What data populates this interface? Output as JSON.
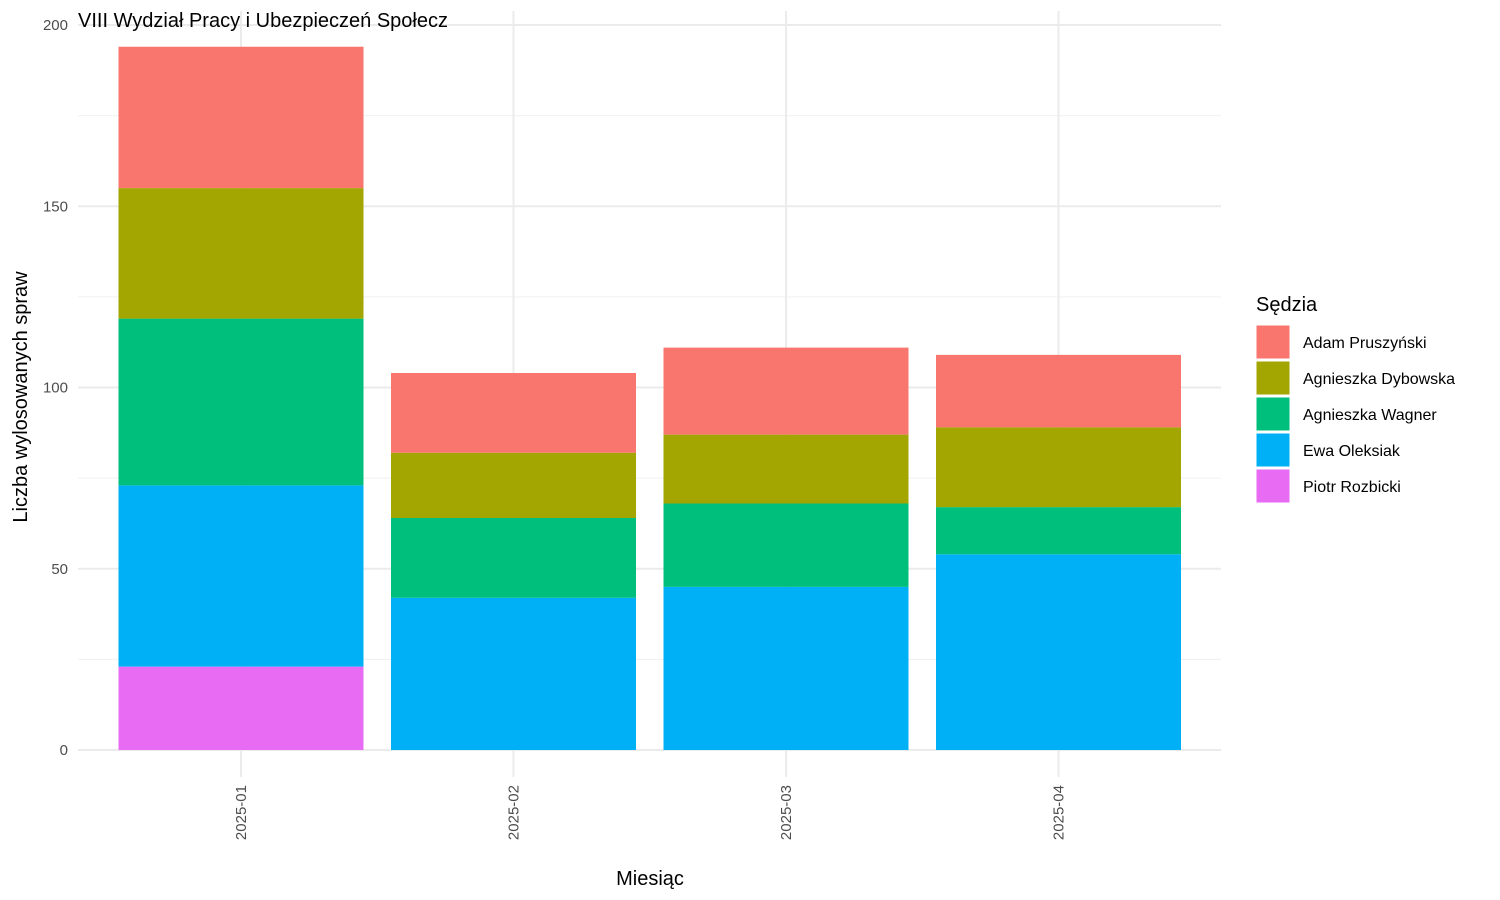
{
  "chart_data": {
    "type": "bar",
    "stacked": true,
    "title": "VIII Wydział Pracy i Ubezpieczeń Społecz",
    "xlabel": "Miesiąc",
    "ylabel": "Liczba wylosowanych spraw",
    "ylim": [
      0,
      200
    ],
    "yticks": [
      0,
      50,
      100,
      150,
      200
    ],
    "grid": true,
    "legend_position": "right",
    "legend_title": "Sędzia",
    "categories": [
      "2025-01",
      "2025-02",
      "2025-03",
      "2025-04"
    ],
    "series": [
      {
        "name": "Adam Pruszyński",
        "color": "#F8766D",
        "values": [
          39,
          22,
          24,
          20
        ]
      },
      {
        "name": "Agnieszka Dybowska",
        "color": "#A3A500",
        "values": [
          36,
          18,
          19,
          22
        ]
      },
      {
        "name": "Agnieszka Wagner",
        "color": "#00BF7D",
        "values": [
          46,
          22,
          23,
          13
        ]
      },
      {
        "name": "Ewa Oleksiak",
        "color": "#00B0F6",
        "values": [
          50,
          42,
          45,
          54
        ]
      },
      {
        "name": "Piotr Rozbicki",
        "color": "#E76BF3",
        "values": [
          23,
          0,
          0,
          0
        ]
      }
    ]
  }
}
